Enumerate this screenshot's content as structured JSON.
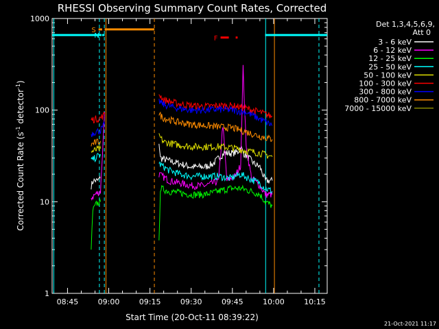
{
  "chart_data": {
    "type": "line",
    "title": "RHESSI Observing Summary Count Rates, Corrected",
    "ylabel_main": "Corrected Count Rate (s",
    "ylabel_sup": "-1",
    "ylabel_mid": " detector",
    "ylabel_end": ")",
    "xlabel": "Start Time (20-Oct-11 08:39:22)",
    "timestamp": "21-Oct-2021 11:17",
    "y_scale": "log",
    "ylim": [
      1,
      1000
    ],
    "xlim_min": [
      39.4,
      139.5
    ],
    "y_ticks": [
      {
        "v": 1,
        "label": "1"
      },
      {
        "v": 10,
        "label": "10"
      },
      {
        "v": 100,
        "label": "100"
      },
      {
        "v": 1000,
        "label": "1000"
      }
    ],
    "x_ticks": [
      {
        "m": 45,
        "label": "08:45"
      },
      {
        "m": 60,
        "label": "09:00"
      },
      {
        "m": 75,
        "label": "09:15"
      },
      {
        "m": 90,
        "label": "09:30"
      },
      {
        "m": 105,
        "label": "09:45"
      },
      {
        "m": 120,
        "label": "10:00"
      },
      {
        "m": 135,
        "label": "10:15"
      }
    ],
    "legend": {
      "header1": "Det 1,3,4,5,6,9,",
      "header2": "Att 0",
      "placement": "top-right"
    },
    "series": [
      {
        "name": "3 - 6 keV",
        "color": "#ffffff",
        "seg1": [
          [
            53.6,
            15
          ],
          [
            54.4,
            17
          ],
          [
            56.0,
            17
          ],
          [
            56.9,
            18
          ]
        ],
        "seg2": [
          [
            78.3,
            45
          ],
          [
            78.8,
            30
          ],
          [
            82,
            28
          ],
          [
            86,
            26
          ],
          [
            90,
            24
          ],
          [
            95,
            24
          ],
          [
            98,
            26
          ],
          [
            100,
            30
          ],
          [
            102,
            34
          ],
          [
            105,
            34
          ],
          [
            107,
            35
          ],
          [
            108,
            40
          ],
          [
            109,
            34
          ],
          [
            111,
            30
          ],
          [
            113,
            26
          ],
          [
            115,
            24
          ],
          [
            117,
            17
          ],
          [
            119.5,
            17
          ]
        ]
      },
      {
        "name": "6 - 12 keV",
        "color": "#ff00ff",
        "seg1": [
          [
            53.6,
            11
          ],
          [
            55,
            12
          ],
          [
            57,
            13
          ],
          [
            58.5,
            95
          ]
        ],
        "seg2": [
          [
            78.3,
            20
          ],
          [
            82,
            17
          ],
          [
            86,
            16
          ],
          [
            90,
            15
          ],
          [
            95,
            15
          ],
          [
            98,
            16
          ],
          [
            100,
            17
          ],
          [
            101.5,
            70
          ],
          [
            103,
            17
          ],
          [
            106,
            19
          ],
          [
            108,
            25
          ],
          [
            108.9,
            290
          ],
          [
            110,
            40
          ],
          [
            112,
            18
          ],
          [
            115,
            15
          ],
          [
            117,
            12
          ],
          [
            119.5,
            12
          ]
        ]
      },
      {
        "name": "12 - 25 keV",
        "color": "#00ff00",
        "seg1": [
          [
            53.6,
            3
          ],
          [
            54.2,
            8
          ],
          [
            55.5,
            9.5
          ],
          [
            57,
            10
          ]
        ],
        "seg2": [
          [
            78.3,
            3.5
          ],
          [
            78.8,
            14
          ],
          [
            82,
            13
          ],
          [
            86,
            12.5
          ],
          [
            90,
            12
          ],
          [
            95,
            12
          ],
          [
            100,
            13
          ],
          [
            104,
            14
          ],
          [
            108,
            14
          ],
          [
            112,
            13
          ],
          [
            115,
            12
          ],
          [
            117,
            10
          ],
          [
            119.5,
            9
          ]
        ]
      },
      {
        "name": "25 - 50 keV",
        "color": "#00ffff",
        "seg1": [
          [
            53.6,
            28
          ],
          [
            55,
            30
          ],
          [
            57,
            33
          ]
        ],
        "seg2": [
          [
            78.3,
            26
          ],
          [
            82,
            22
          ],
          [
            86,
            20
          ],
          [
            90,
            19
          ],
          [
            95,
            19
          ],
          [
            100,
            19
          ],
          [
            104,
            18
          ],
          [
            108,
            20
          ],
          [
            111,
            18
          ],
          [
            115,
            16
          ],
          [
            117,
            14
          ],
          [
            119.5,
            13
          ]
        ]
      },
      {
        "name": "50 - 100 keV",
        "color": "#e0e000",
        "seg1": [
          [
            53.6,
            35
          ],
          [
            55.5,
            37
          ],
          [
            57,
            38
          ]
        ],
        "seg2": [
          [
            78.3,
            52
          ],
          [
            80,
            45
          ],
          [
            85,
            42
          ],
          [
            90,
            40
          ],
          [
            95,
            40
          ],
          [
            100,
            40
          ],
          [
            105,
            39
          ],
          [
            110,
            36
          ],
          [
            115,
            34
          ],
          [
            119.5,
            31
          ]
        ]
      },
      {
        "name": "100 - 300 keV",
        "color": "#ff0000",
        "seg1": [
          [
            53.6,
            78
          ],
          [
            55,
            80
          ],
          [
            57,
            82
          ],
          [
            58.5,
            90
          ]
        ],
        "seg2": [
          [
            78.3,
            150
          ],
          [
            80,
            130
          ],
          [
            85,
            118
          ],
          [
            90,
            112
          ],
          [
            95,
            110
          ],
          [
            100,
            112
          ],
          [
            105,
            112
          ],
          [
            110,
            105
          ],
          [
            115,
            95
          ],
          [
            119.5,
            85
          ]
        ]
      },
      {
        "name": "300 - 800 keV",
        "color": "#0000ff",
        "seg1": [
          [
            53.6,
            55
          ],
          [
            55,
            58
          ],
          [
            57,
            60
          ],
          [
            58.5,
            70
          ]
        ],
        "seg2": [
          [
            78.3,
            125
          ],
          [
            80,
            115
          ],
          [
            85,
            105
          ],
          [
            90,
            100
          ],
          [
            95,
            100
          ],
          [
            100,
            102
          ],
          [
            105,
            100
          ],
          [
            110,
            95
          ],
          [
            115,
            80
          ],
          [
            119.5,
            68
          ]
        ]
      },
      {
        "name": "800 - 7000 keV",
        "color": "#ff8c00",
        "seg1": [
          [
            53.6,
            42
          ],
          [
            55,
            44
          ],
          [
            57,
            46
          ]
        ],
        "seg2": [
          [
            78.3,
            90
          ],
          [
            80,
            82
          ],
          [
            85,
            74
          ],
          [
            90,
            70
          ],
          [
            95,
            68
          ],
          [
            100,
            66
          ],
          [
            105,
            64
          ],
          [
            110,
            58
          ],
          [
            115,
            52
          ],
          [
            119.5,
            48
          ]
        ]
      },
      {
        "name": "7000 - 15000 keV",
        "color": "#888800",
        "seg1": [],
        "seg2": []
      }
    ],
    "bars": [
      {
        "label": "",
        "color": "#00ffff",
        "y": 660,
        "from": 39.4,
        "to": 57.4,
        "style": "solid"
      },
      {
        "label": "S",
        "color": "#ff8c00",
        "y": 760,
        "from": 56.3,
        "to": 57.6,
        "style": "solid"
      },
      {
        "label": "N",
        "color": "#00ffff",
        "y": 660,
        "from": 57.6,
        "to": 58.5,
        "style": "solid"
      },
      {
        "label": "",
        "color": "#ff8c00",
        "y": 760,
        "from": 58.5,
        "to": 76.6,
        "style": "solid"
      },
      {
        "label": "F",
        "color": "#ff0000",
        "y": 620,
        "from": 100.7,
        "to": 106.9,
        "style": "dashed"
      },
      {
        "label": "",
        "color": "#00ffff",
        "y": 660,
        "from": 116.9,
        "to": 139.5,
        "style": "solid"
      }
    ],
    "vlines": [
      {
        "m": 40.0,
        "color": "#00ffff",
        "style": "solid"
      },
      {
        "m": 56.6,
        "color": "#00ffff",
        "style": "dashed"
      },
      {
        "m": 58.4,
        "color": "#00ffff",
        "style": "dashed"
      },
      {
        "m": 59.0,
        "color": "#ff8c00",
        "style": "solid"
      },
      {
        "m": 76.6,
        "color": "#ff8c00",
        "style": "dashed"
      },
      {
        "m": 117.1,
        "color": "#00ffff",
        "style": "solid"
      },
      {
        "m": 120.3,
        "color": "#ff8c00",
        "style": "solid"
      },
      {
        "m": 136.5,
        "color": "#00ffff",
        "style": "dashed"
      }
    ]
  }
}
